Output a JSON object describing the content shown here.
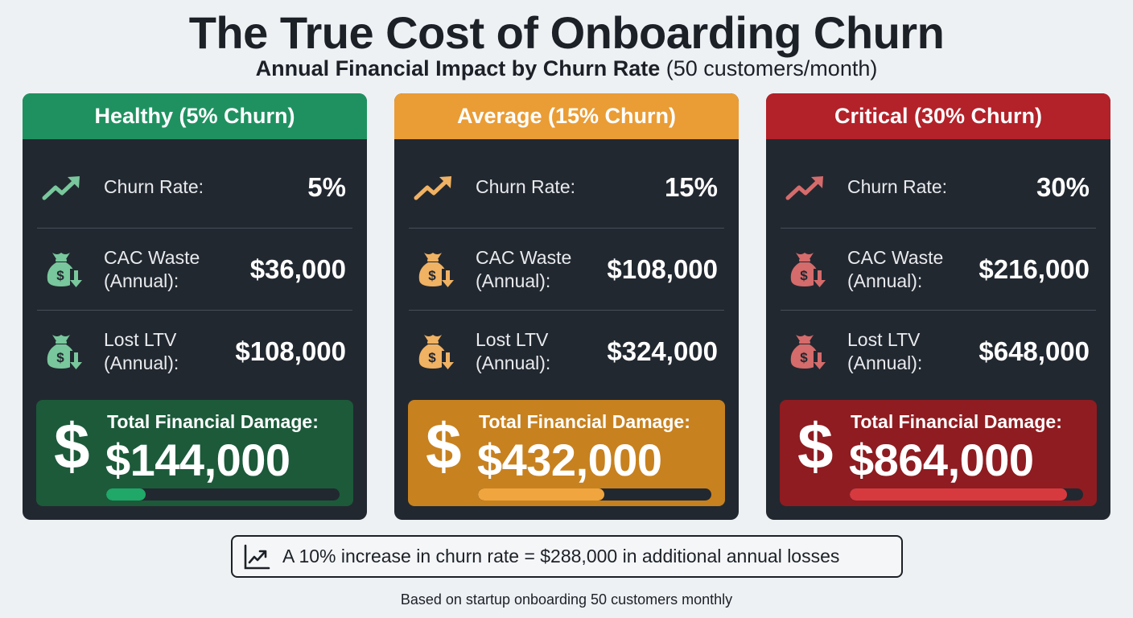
{
  "header": {
    "title": "The True Cost of Onboarding Churn",
    "subtitle_bold": "Annual Financial Impact by Churn Rate",
    "subtitle_light": "(50 customers/month)"
  },
  "cards": [
    {
      "title": "Healthy (5% Churn)",
      "header_color": "#1f9160",
      "icon_color": "#79c79c",
      "total_bg": "#1c5a3a",
      "bar_color": "#1fa868",
      "bar_percent": 17,
      "rows": [
        {
          "icon": "trending-up-icon",
          "label": "Churn Rate:",
          "value": "5%"
        },
        {
          "icon": "money-bag-down-icon",
          "label": "CAC Waste\n(Annual):",
          "value": "$36,000"
        },
        {
          "icon": "money-bag-down-icon",
          "label": "Lost LTV\n(Annual):",
          "value": "$108,000"
        }
      ],
      "total_label": "Total Financial Damage:",
      "total_value": "$144,000"
    },
    {
      "title": "Average (15% Churn)",
      "header_color": "#ea9c35",
      "icon_color": "#f0b263",
      "total_bg": "#c7811f",
      "bar_color": "#f0a53e",
      "bar_percent": 54,
      "rows": [
        {
          "icon": "trending-up-icon",
          "label": "Churn Rate:",
          "value": "15%"
        },
        {
          "icon": "money-bag-down-icon",
          "label": "CAC Waste\n(Annual):",
          "value": "$108,000"
        },
        {
          "icon": "money-bag-down-icon",
          "label": "Lost LTV\n(Annual):",
          "value": "$324,000"
        }
      ],
      "total_label": "Total Financial Damage:",
      "total_value": "$432,000"
    },
    {
      "title": "Critical (30% Churn)",
      "header_color": "#b32129",
      "icon_color": "#d56b6b",
      "total_bg": "#8e1c21",
      "bar_color": "#d63a3f",
      "bar_percent": 93,
      "rows": [
        {
          "icon": "trending-up-icon",
          "label": "Churn Rate:",
          "value": "30%"
        },
        {
          "icon": "money-bag-down-icon",
          "label": "CAC Waste\n(Annual):",
          "value": "$216,000"
        },
        {
          "icon": "money-bag-down-icon",
          "label": "Lost LTV\n(Annual):",
          "value": "$648,000"
        }
      ],
      "total_label": "Total Financial Damage:",
      "total_value": "$864,000"
    }
  ],
  "callout": {
    "icon": "line-chart-icon",
    "text": "A 10% increase in churn rate = $288,000 in additional annual losses"
  },
  "footnote": "Based on startup onboarding 50 customers monthly"
}
